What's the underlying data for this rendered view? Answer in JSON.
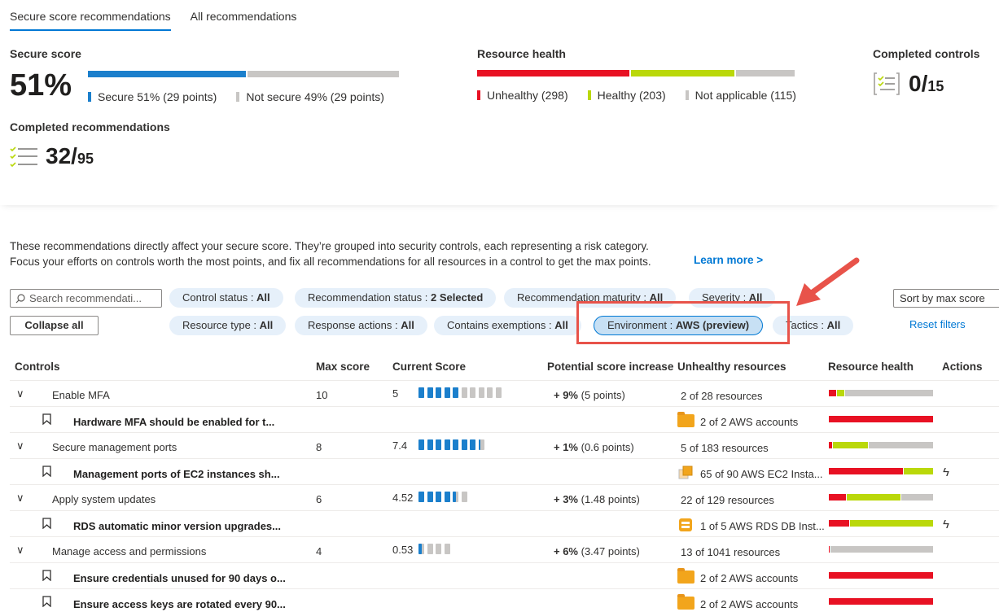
{
  "tabs": [
    "Secure score recommendations",
    "All recommendations"
  ],
  "secure_score": {
    "title": "Secure score",
    "value": "51%",
    "secure_fraction": 0.51,
    "legend_secure": "Secure 51% (29 points)",
    "legend_not_secure": "Not secure 49% (29 points)",
    "color_secure": "#1b7fcc",
    "color_not_secure": "#c8c6c4"
  },
  "resource_health": {
    "title": "Resource health",
    "unhealthy": 298,
    "healthy": 203,
    "not_applicable": 115,
    "legend_unhealthy": "Unhealthy (298)",
    "legend_healthy": "Healthy (203)",
    "legend_na": "Not applicable (115)",
    "color_unhealthy": "#e81123",
    "color_healthy": "#bad80a",
    "color_na": "#c8c6c4"
  },
  "completed_controls": {
    "title": "Completed controls",
    "value": "0/",
    "total": "15",
    "icon": "checklist-icon"
  },
  "completed_recommendations": {
    "title": "Completed recommendations",
    "value": "32/",
    "total": "95",
    "icon": "checklist-icon"
  },
  "description": {
    "line1": "These recommendations directly affect your secure score. They’re grouped into security controls, each representing a risk category.",
    "line2": "Focus your efforts on controls worth the most points, and fix all recommendations for all resources in a control to get the max points.",
    "learn_more": "Learn more >"
  },
  "filters": {
    "search_placeholder": "Search recommendati...",
    "collapse_all": "Collapse all",
    "sort": "Sort by max score",
    "reset": "Reset filters",
    "pills": [
      {
        "label": "Control status : ",
        "value": "All"
      },
      {
        "label": "Recommendation status : ",
        "value": "2 Selected"
      },
      {
        "label": "Recommendation maturity : ",
        "value": "All"
      },
      {
        "label": "Severity : ",
        "value": "All"
      },
      {
        "label": "Resource type : ",
        "value": "All"
      },
      {
        "label": "Response actions : ",
        "value": "All"
      },
      {
        "label": "Contains exemptions : ",
        "value": "All"
      },
      {
        "label": "Environment : ",
        "value": "AWS (preview)"
      },
      {
        "label": "Tactics : ",
        "value": "All"
      }
    ]
  },
  "table": {
    "headers": [
      "Controls",
      "Max score",
      "Current Score",
      "Potential score increase",
      "Unhealthy resources",
      "Resource health",
      "Actions"
    ],
    "rows": [
      {
        "type": "control",
        "name": "Enable MFA",
        "max": "10",
        "current": "5",
        "filled": 5,
        "total_seg": 10,
        "pct": "+ 9%",
        "pts": "(5 points)",
        "unhealthy": "2 of 28 resources",
        "health": [
          0.07,
          0.07,
          0.86
        ]
      },
      {
        "type": "rec",
        "name": "Hardware MFA should be enabled for t...",
        "unhealthy": "2 of 2 AWS accounts",
        "icon": "folder-icon",
        "health": [
          1,
          0,
          0
        ]
      },
      {
        "type": "control",
        "name": "Secure management ports",
        "max": "8",
        "current": "7.4",
        "filled": 7.4,
        "total_seg": 8,
        "pct": "+ 1%",
        "pts": "(0.6 points)",
        "unhealthy": "5 of 183 resources",
        "health": [
          0.03,
          0.34,
          0.63
        ]
      },
      {
        "type": "rec",
        "name": "Management ports of EC2 instances sh...",
        "unhealthy": "65 of 90 AWS EC2 Insta...",
        "icon": "ec2-icon",
        "health": [
          0.72,
          0.28,
          0
        ],
        "quick_fix": true
      },
      {
        "type": "control",
        "name": "Apply system updates",
        "max": "6",
        "current": "4.52",
        "filled": 4.52,
        "total_seg": 6,
        "pct": "+ 3%",
        "pts": "(1.48 points)",
        "unhealthy": "22 of 129 resources",
        "health": [
          0.17,
          0.52,
          0.31
        ]
      },
      {
        "type": "rec",
        "name": "RDS automatic minor version upgrades...",
        "unhealthy": "1 of 5 AWS RDS DB Inst...",
        "icon": "rds-icon",
        "health": [
          0.2,
          0.8,
          0
        ],
        "quick_fix": true
      },
      {
        "type": "control",
        "name": "Manage access and permissions",
        "max": "4",
        "current": "0.53",
        "filled": 0.53,
        "total_seg": 4,
        "pct": "+ 6%",
        "pts": "(3.47 points)",
        "unhealthy": "13 of 1041 resources",
        "health": [
          0.01,
          0,
          0.99
        ]
      },
      {
        "type": "rec",
        "name": "Ensure credentials unused for 90 days o...",
        "unhealthy": "2 of 2 AWS accounts",
        "icon": "folder-icon",
        "health": [
          1,
          0,
          0
        ]
      },
      {
        "type": "rec",
        "name": "Ensure access keys are rotated every 90...",
        "unhealthy": "2 of 2 AWS accounts",
        "icon": "folder-icon",
        "health": [
          1,
          0,
          0
        ]
      }
    ]
  }
}
